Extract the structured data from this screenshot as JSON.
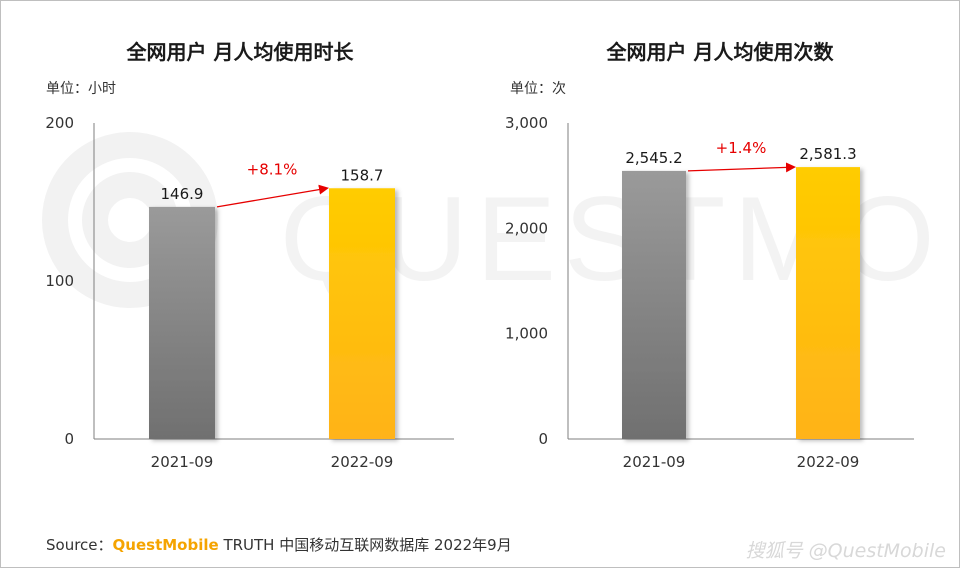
{
  "watermark_text": "QUESTMOBILE",
  "source": {
    "prefix": "Source：",
    "brand": "QuestMobile",
    "rest": " TRUTH 中国移动互联网数据库 2022年9月"
  },
  "credit": "搜狐号 @QuestMobile",
  "chart_data": [
    {
      "type": "bar",
      "title": "全网用户 月人均使用时长",
      "unit": "单位：小时",
      "categories": [
        "2021-09",
        "2022-09"
      ],
      "values": [
        146.9,
        158.7
      ],
      "value_labels": [
        "146.9",
        "158.7"
      ],
      "ylim": [
        0,
        200
      ],
      "yticks": [
        0,
        100,
        200
      ],
      "ytick_labels": [
        "0",
        "100",
        "200"
      ],
      "growth_label": "+8.1%",
      "colors": {
        "bar1_top": "#9a9a9a",
        "bar1_bottom": "#707070",
        "bar2_top": "#ffcc00",
        "bar2_bottom": "#ffb31a",
        "arrow": "#e60000"
      },
      "grid": false
    },
    {
      "type": "bar",
      "title": "全网用户 月人均使用次数",
      "unit": "单位：次",
      "categories": [
        "2021-09",
        "2022-09"
      ],
      "values": [
        2545.2,
        2581.3
      ],
      "value_labels": [
        "2,545.2",
        "2,581.3"
      ],
      "ylim": [
        0,
        3000
      ],
      "yticks": [
        0,
        1000,
        2000,
        3000
      ],
      "ytick_labels": [
        "0",
        "1,000",
        "2,000",
        "3,000"
      ],
      "growth_label": "+1.4%",
      "colors": {
        "bar1_top": "#9a9a9a",
        "bar1_bottom": "#707070",
        "bar2_top": "#ffcc00",
        "bar2_bottom": "#ffb31a",
        "arrow": "#e60000"
      },
      "grid": false
    }
  ]
}
